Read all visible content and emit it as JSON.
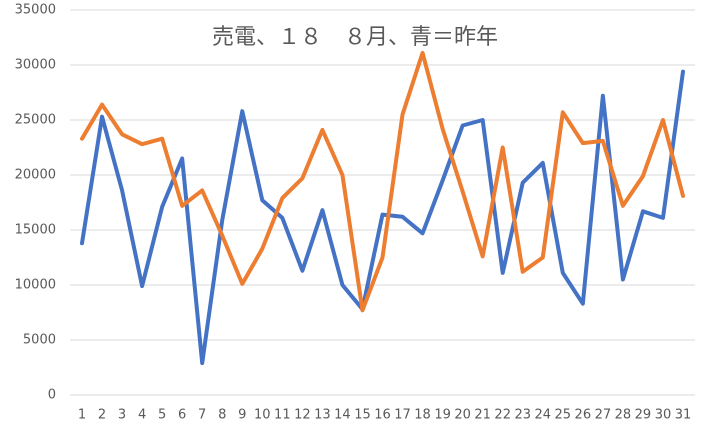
{
  "chart_data": {
    "type": "line",
    "title": "売電、１８　８月、青＝昨年",
    "categories": [
      "1",
      "2",
      "3",
      "4",
      "5",
      "6",
      "7",
      "8",
      "9",
      "10",
      "11",
      "12",
      "13",
      "14",
      "15",
      "16",
      "17",
      "18",
      "19",
      "20",
      "21",
      "22",
      "23",
      "24",
      "25",
      "26",
      "27",
      "28",
      "29",
      "30",
      "31"
    ],
    "series": [
      {
        "color": "#4472c4",
        "values": [
          13800,
          25300,
          18600,
          9900,
          17100,
          21500,
          2900,
          15900,
          25800,
          17700,
          16100,
          11300,
          16800,
          10000,
          7800,
          16400,
          16200,
          14700,
          19500,
          24500,
          25000,
          11100,
          19300,
          21100,
          11100,
          8300,
          27200,
          10500,
          16700,
          16100,
          29400
        ]
      },
      {
        "color": "#ed7d31",
        "values": [
          23300,
          26400,
          23700,
          22800,
          23300,
          17200,
          18600,
          14500,
          10100,
          13300,
          17900,
          19700,
          24100,
          20000,
          7700,
          12500,
          25500,
          31100,
          24200,
          18500,
          12600,
          22500,
          11200,
          12500,
          25700,
          22900,
          23100,
          17200,
          19900,
          25000,
          18100
        ]
      }
    ],
    "ylim": [
      0,
      35000
    ],
    "yticks": [
      0,
      5000,
      10000,
      15000,
      20000,
      25000,
      30000,
      35000
    ],
    "grid": true
  }
}
